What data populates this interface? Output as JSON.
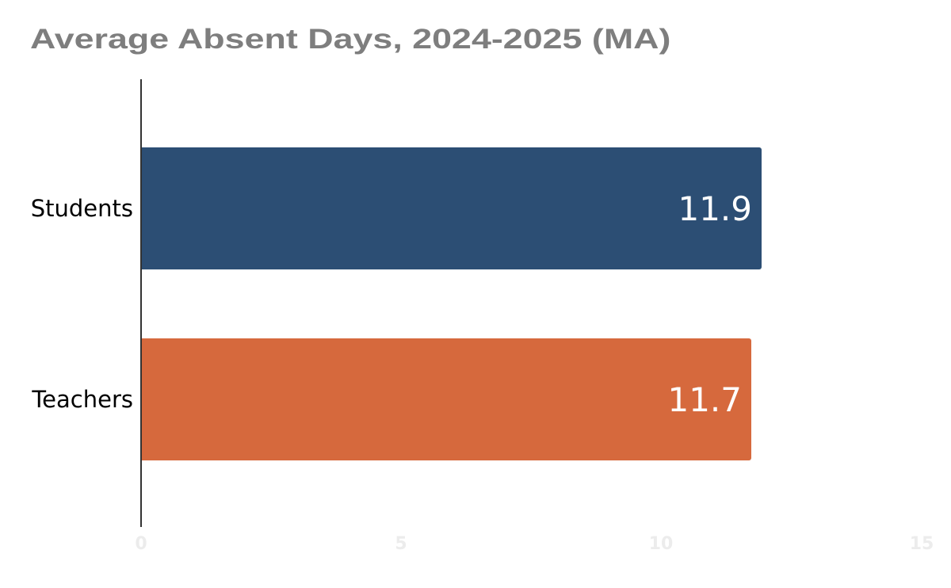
{
  "chart_data": {
    "type": "bar",
    "orientation": "horizontal",
    "title": "Average Absent Days, 2024-2025 (MA)",
    "categories": [
      "Students",
      "Teachers"
    ],
    "values": [
      11.9,
      11.7
    ],
    "bar_labels": [
      "11.9",
      "11.7"
    ],
    "colors": [
      "#2c4e74",
      "#d6693d"
    ],
    "xlabel": "",
    "ylabel": "",
    "xlim": [
      0,
      15
    ],
    "xticks": [
      0,
      5,
      10,
      15
    ],
    "grid": false,
    "legend": false,
    "title_color": "#7e7e7e",
    "category_label_color": "#000000",
    "value_label_color": "#ffffff",
    "tick_label_color": "#ececec",
    "axis_line_color": "#333333",
    "background_color": "#ffffff"
  }
}
